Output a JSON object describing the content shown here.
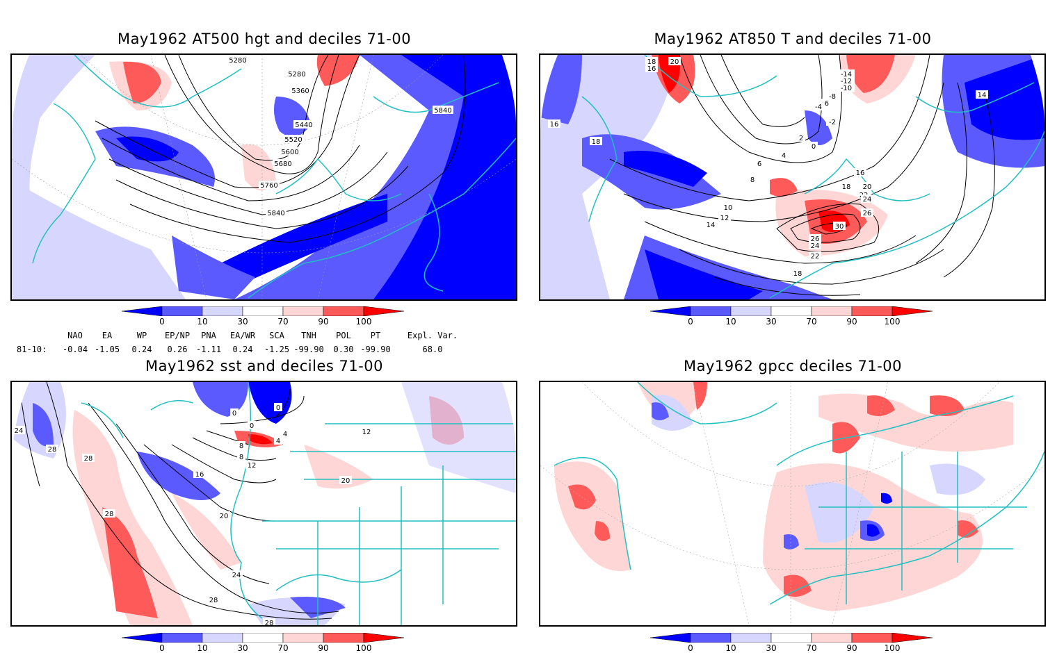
{
  "panels": [
    {
      "title": "May1962 AT500 hgt and deciles 71-00",
      "contour_labels": [
        "5280",
        "5280",
        "5360",
        "5440",
        "5520",
        "5600",
        "5680",
        "5760",
        "5840",
        "5840"
      ]
    },
    {
      "title": "May1962 AT850 T and deciles 71-00",
      "contour_labels": [
        "18",
        "16",
        "20",
        "-14",
        "-12",
        "-10",
        "-8",
        "-6",
        "-4",
        "-2",
        "0",
        "2",
        "4",
        "6",
        "8",
        "10",
        "12",
        "14",
        "16",
        "18",
        "20",
        "22",
        "24",
        "26",
        "30",
        "26",
        "24",
        "22",
        "16",
        "18",
        "18",
        "14"
      ]
    },
    {
      "title": "May1962 sst and deciles 71-00",
      "contour_labels": [
        "0",
        "0",
        "4",
        "0",
        "4",
        "8",
        "8",
        "12",
        "16",
        "20",
        "24",
        "28",
        "28",
        "28",
        "24",
        "28",
        "28",
        "20",
        "12"
      ]
    },
    {
      "title": "May1962 gpcc deciles 71-00",
      "contour_labels": []
    }
  ],
  "colorbar": {
    "ticks": [
      "0",
      "10",
      "30",
      "70",
      "90",
      "100"
    ],
    "colors": {
      "lt0": "#0000ff",
      "b0_10": "#5a5aff",
      "b10_30": "#d6d6ff",
      "b30_70": "#ffffff",
      "b70_90": "#ffd6d6",
      "b90_100": "#ff5a5a",
      "gt100": "#ff0000"
    }
  },
  "indices": {
    "headers": [
      "NAO",
      "EA",
      "WP",
      "EP/NP",
      "PNA",
      "EA/WR",
      "SCA",
      "TNH",
      "POL",
      "PT",
      "Expl. Var."
    ],
    "row_label": "81-10:",
    "values": [
      "-0.04",
      "-1.05",
      "0.24",
      "0.26",
      "-1.11",
      "0.24",
      "-1.25",
      "-99.90",
      "0.30",
      "-99.90",
      "68.0"
    ]
  },
  "colors": {
    "coast": "#20c0c0",
    "contour": "#000000",
    "frame": "#000000"
  }
}
